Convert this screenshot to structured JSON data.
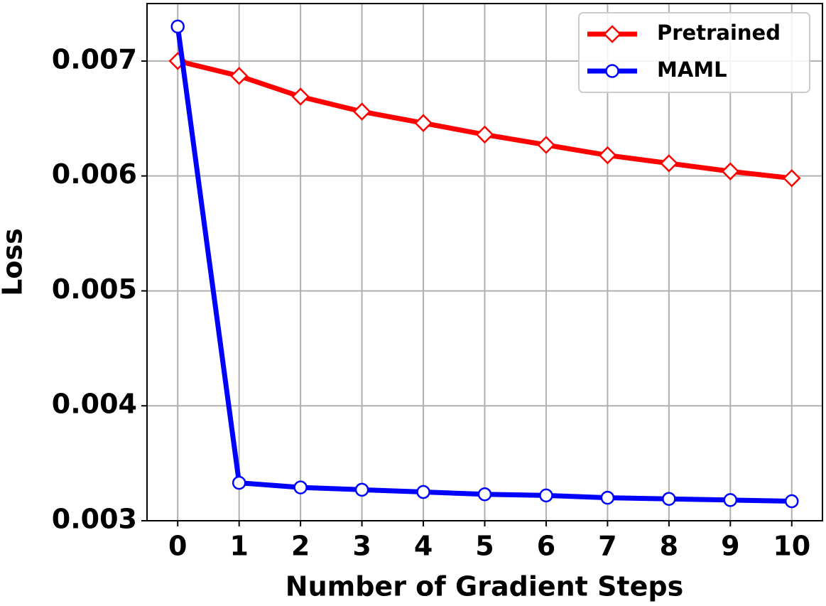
{
  "chart_data": {
    "type": "line",
    "x_label": "Number of Gradient Steps",
    "y_label": "Loss",
    "x": [
      0,
      1,
      2,
      3,
      4,
      5,
      6,
      7,
      8,
      9,
      10
    ],
    "series": [
      {
        "name": "Pretrained",
        "color": "#ff0000",
        "marker": "diamond",
        "values": [
          0.007,
          0.00687,
          0.00669,
          0.00656,
          0.00646,
          0.00636,
          0.00627,
          0.00618,
          0.00611,
          0.00604,
          0.00598
        ]
      },
      {
        "name": "MAML",
        "color": "#0000ff",
        "marker": "circle",
        "values": [
          0.0073,
          0.00333,
          0.00329,
          0.00327,
          0.00325,
          0.00323,
          0.00322,
          0.0032,
          0.00319,
          0.00318,
          0.00317
        ]
      }
    ],
    "xlim": [
      -0.5,
      10.5
    ],
    "ylim": [
      0.003,
      0.0075
    ],
    "xticks": [
      0,
      1,
      2,
      3,
      4,
      5,
      6,
      7,
      8,
      9,
      10
    ],
    "yticks": [
      0.003,
      0.004,
      0.005,
      0.006,
      0.007
    ],
    "grid": true,
    "legend": "upper right"
  }
}
